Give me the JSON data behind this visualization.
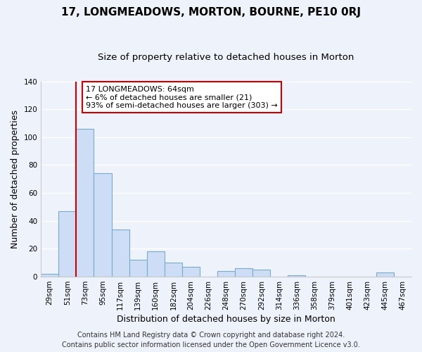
{
  "title": "17, LONGMEADOWS, MORTON, BOURNE, PE10 0RJ",
  "subtitle": "Size of property relative to detached houses in Morton",
  "xlabel": "Distribution of detached houses by size in Morton",
  "ylabel": "Number of detached properties",
  "bar_color": "#ccddf5",
  "bar_edge_color": "#7aabcf",
  "categories": [
    "29sqm",
    "51sqm",
    "73sqm",
    "95sqm",
    "117sqm",
    "139sqm",
    "160sqm",
    "182sqm",
    "204sqm",
    "226sqm",
    "248sqm",
    "270sqm",
    "292sqm",
    "314sqm",
    "336sqm",
    "358sqm",
    "379sqm",
    "401sqm",
    "423sqm",
    "445sqm",
    "467sqm"
  ],
  "values": [
    2,
    47,
    106,
    74,
    34,
    12,
    18,
    10,
    7,
    0,
    4,
    6,
    5,
    0,
    1,
    0,
    0,
    0,
    0,
    3,
    0
  ],
  "ylim": [
    0,
    140
  ],
  "yticks": [
    0,
    20,
    40,
    60,
    80,
    100,
    120,
    140
  ],
  "vline_x": 1.5,
  "vline_color": "#cc0000",
  "annotation_text": "17 LONGMEADOWS: 64sqm\n← 6% of detached houses are smaller (21)\n93% of semi-detached houses are larger (303) →",
  "annotation_box_facecolor": "#ffffff",
  "annotation_box_edgecolor": "#cc0000",
  "footer_line1": "Contains HM Land Registry data © Crown copyright and database right 2024.",
  "footer_line2": "Contains public sector information licensed under the Open Government Licence v3.0.",
  "background_color": "#eef2fa",
  "plot_background": "#eef2fa",
  "grid_color": "#ffffff",
  "title_fontsize": 11,
  "subtitle_fontsize": 9.5,
  "axis_label_fontsize": 9,
  "tick_fontsize": 7.5,
  "annotation_fontsize": 8,
  "footer_fontsize": 7
}
